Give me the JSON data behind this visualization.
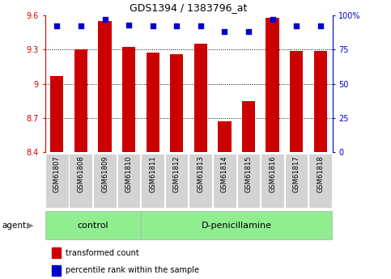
{
  "title": "GDS1394 / 1383796_at",
  "samples": [
    "GSM61807",
    "GSM61808",
    "GSM61809",
    "GSM61810",
    "GSM61811",
    "GSM61812",
    "GSM61813",
    "GSM61814",
    "GSM61815",
    "GSM61816",
    "GSM61817",
    "GSM61818"
  ],
  "bar_values": [
    9.07,
    9.3,
    9.55,
    9.32,
    9.27,
    9.26,
    9.35,
    8.67,
    8.85,
    9.58,
    9.29,
    9.29
  ],
  "percentile_values": [
    92,
    92,
    97,
    93,
    92,
    92,
    92,
    88,
    88,
    97,
    92,
    92
  ],
  "bar_bottom": 8.4,
  "ylim": [
    8.4,
    9.6
  ],
  "yticks": [
    8.4,
    8.7,
    9.0,
    9.3,
    9.6
  ],
  "ytick_labels": [
    "8.4",
    "8.7",
    "9",
    "9.3",
    "9.6"
  ],
  "right_yticks": [
    0,
    25,
    50,
    75,
    100
  ],
  "right_ytick_labels": [
    "0",
    "25",
    "50",
    "75",
    "100%"
  ],
  "bar_color": "#cc0000",
  "dot_color": "#0000cc",
  "control_label": "control",
  "treatment_label": "D-penicillamine",
  "agent_label": "agent",
  "legend_bar_label": "transformed count",
  "legend_dot_label": "percentile rank within the sample",
  "tick_color_left": "#cc0000",
  "tick_color_right": "#0000cc",
  "n_control": 4,
  "n_treatment": 8
}
